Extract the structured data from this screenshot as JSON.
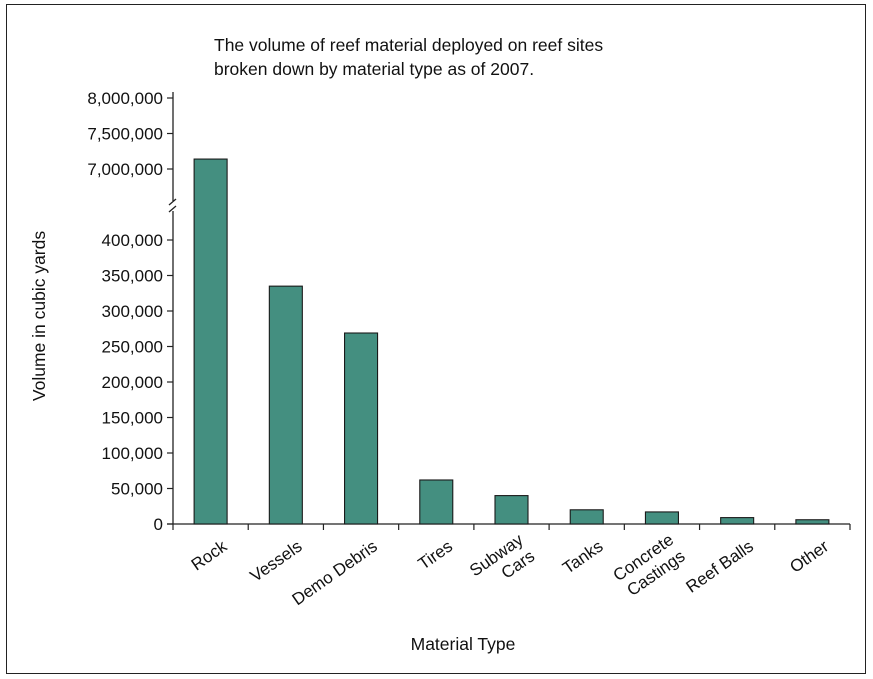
{
  "chart_data": {
    "type": "bar",
    "title_lines": [
      "The volume of reef material deployed on reef sites",
      "broken down by material type as of 2007."
    ],
    "xlabel": "Material Type",
    "ylabel": "Volume in cubic yards",
    "categories": [
      [
        "Rock"
      ],
      [
        "Vessels"
      ],
      [
        "Demo Debris"
      ],
      [
        "Tires"
      ],
      [
        "Subway",
        "Cars"
      ],
      [
        "Tanks"
      ],
      [
        "Concrete",
        "Castings"
      ],
      [
        "Reef Balls"
      ],
      [
        "Other"
      ]
    ],
    "values": [
      7140000,
      335000,
      269000,
      62000,
      40000,
      20000,
      17000,
      9000,
      6000
    ],
    "axis_break": {
      "lower_max": 400000,
      "upper_min": 7000000
    },
    "lower_ticks": [
      0,
      50000,
      100000,
      150000,
      200000,
      250000,
      300000,
      350000,
      400000
    ],
    "upper_ticks": [
      7000000,
      7500000,
      8000000
    ],
    "lower_tick_labels": [
      "0",
      "50,000",
      "100,000",
      "150,000",
      "200,000",
      "250,000",
      "300,000",
      "350,000",
      "400,000"
    ],
    "upper_tick_labels": [
      "7,000,000",
      "7,500,000",
      "8,000,000"
    ],
    "bar_color": "#448F80",
    "grid": false,
    "legend": "none"
  }
}
